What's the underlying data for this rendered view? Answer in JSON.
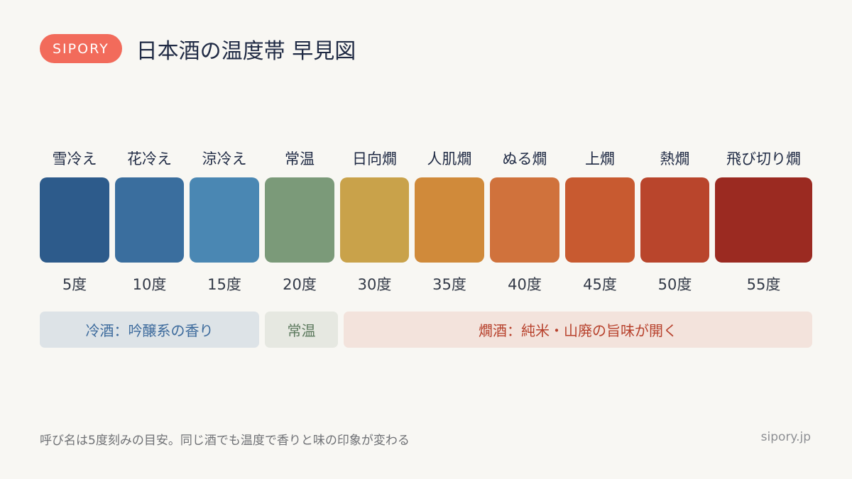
{
  "header": {
    "brand": "SIPORY",
    "title": "日本酒の温度帯 早見図"
  },
  "temperatures": [
    {
      "name": "雪冷え",
      "temp": "5度",
      "color": "#2d5b8b"
    },
    {
      "name": "花冷え",
      "temp": "10度",
      "color": "#3a6e9e"
    },
    {
      "name": "涼冷え",
      "temp": "15度",
      "color": "#4a87b3"
    },
    {
      "name": "常温",
      "temp": "20度",
      "color": "#7b9a79"
    },
    {
      "name": "日向燗",
      "temp": "30度",
      "color": "#c9a24a"
    },
    {
      "name": "人肌燗",
      "temp": "35度",
      "color": "#d08a3a"
    },
    {
      "name": "ぬる燗",
      "temp": "40度",
      "color": "#d0723c"
    },
    {
      "name": "上燗",
      "temp": "45度",
      "color": "#c85a30"
    },
    {
      "name": "熱燗",
      "temp": "50度",
      "color": "#b9452c"
    },
    {
      "name": "飛び切り燗",
      "temp": "55度",
      "color": "#9b2a21"
    }
  ],
  "bands": {
    "cold": "冷酒：吟醸系の香り",
    "room": "常温",
    "warm": "燗酒：純米・山廃の旨味が開く"
  },
  "footer": {
    "note": "呼び名は5度刻みの目安。同じ酒でも温度で香りと味の印象が変わる",
    "domain": "sipory.jp"
  }
}
